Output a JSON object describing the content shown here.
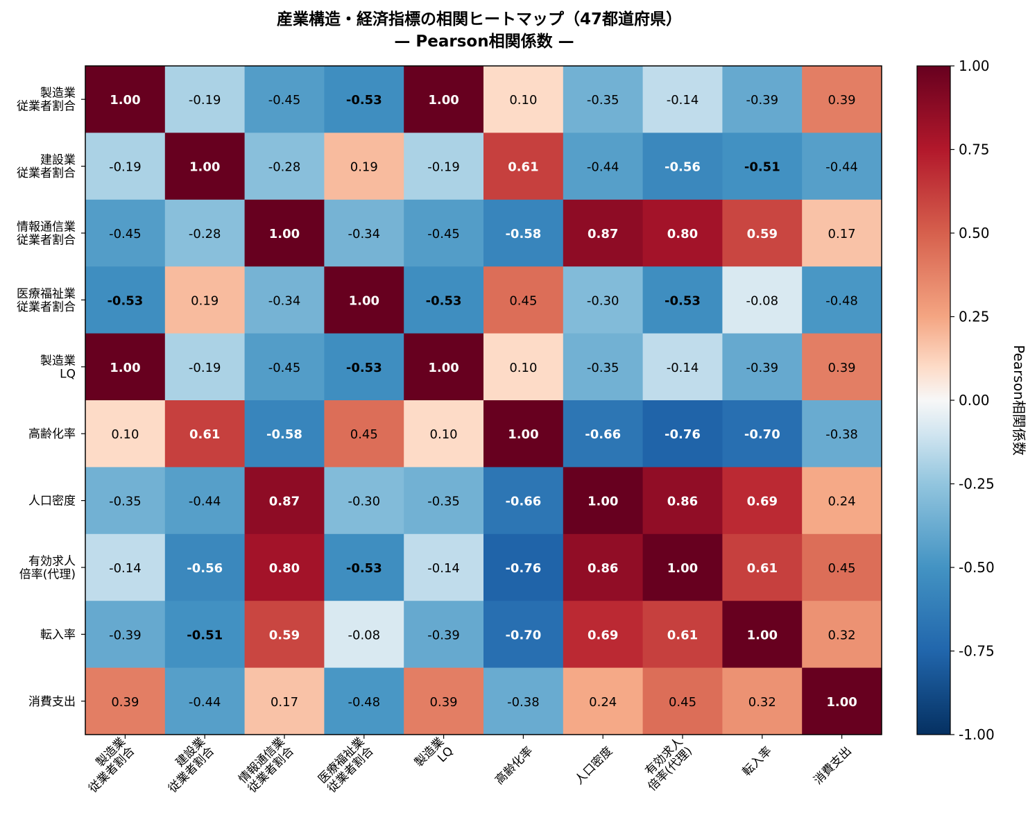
{
  "chart_data": {
    "type": "heatmap",
    "title": "産業構造・経済指標の相関ヒートマップ（47都道府県）",
    "subtitle": "— Pearson相関係数 —",
    "colorbar_label": "Pearson相関係数",
    "colormap": "RdBu_r",
    "vmin": -1.0,
    "vmax": 1.0,
    "colorbar_ticks": [
      "1.00",
      "0.75",
      "0.50",
      "0.25",
      "0.00",
      "-0.25",
      "-0.50",
      "-0.75",
      "-1.00"
    ],
    "labels": [
      [
        "製造業",
        "従業者割合"
      ],
      [
        "建設業",
        "従業者割合"
      ],
      [
        "情報通信業",
        "従業者割合"
      ],
      [
        "医療福祉業",
        "従業者割合"
      ],
      [
        "製造業",
        "LQ"
      ],
      [
        "高齢化率"
      ],
      [
        "人口密度"
      ],
      [
        "有効求人",
        "倍率(代理)"
      ],
      [
        "転入率"
      ],
      [
        "消費支出"
      ]
    ],
    "matrix": [
      [
        1.0,
        -0.19,
        -0.45,
        -0.53,
        1.0,
        0.1,
        -0.35,
        -0.14,
        -0.39,
        0.39
      ],
      [
        -0.19,
        1.0,
        -0.28,
        0.19,
        -0.19,
        0.61,
        -0.44,
        -0.56,
        -0.51,
        -0.44
      ],
      [
        -0.45,
        -0.28,
        1.0,
        -0.34,
        -0.45,
        -0.58,
        0.87,
        0.8,
        0.59,
        0.17
      ],
      [
        -0.53,
        0.19,
        -0.34,
        1.0,
        -0.53,
        0.45,
        -0.3,
        -0.53,
        -0.08,
        -0.48
      ],
      [
        1.0,
        -0.19,
        -0.45,
        -0.53,
        1.0,
        0.1,
        -0.35,
        -0.14,
        -0.39,
        0.39
      ],
      [
        0.1,
        0.61,
        -0.58,
        0.45,
        0.1,
        1.0,
        -0.66,
        -0.76,
        -0.7,
        -0.38
      ],
      [
        -0.35,
        -0.44,
        0.87,
        -0.3,
        -0.35,
        -0.66,
        1.0,
        0.86,
        0.69,
        0.24
      ],
      [
        -0.14,
        -0.56,
        0.8,
        -0.53,
        -0.14,
        -0.76,
        0.86,
        1.0,
        0.61,
        0.45
      ],
      [
        -0.39,
        -0.51,
        0.59,
        -0.08,
        -0.39,
        -0.7,
        0.69,
        0.61,
        1.0,
        0.32
      ],
      [
        0.39,
        -0.44,
        0.17,
        -0.48,
        0.39,
        -0.38,
        0.24,
        0.45,
        0.32,
        1.0
      ]
    ]
  }
}
